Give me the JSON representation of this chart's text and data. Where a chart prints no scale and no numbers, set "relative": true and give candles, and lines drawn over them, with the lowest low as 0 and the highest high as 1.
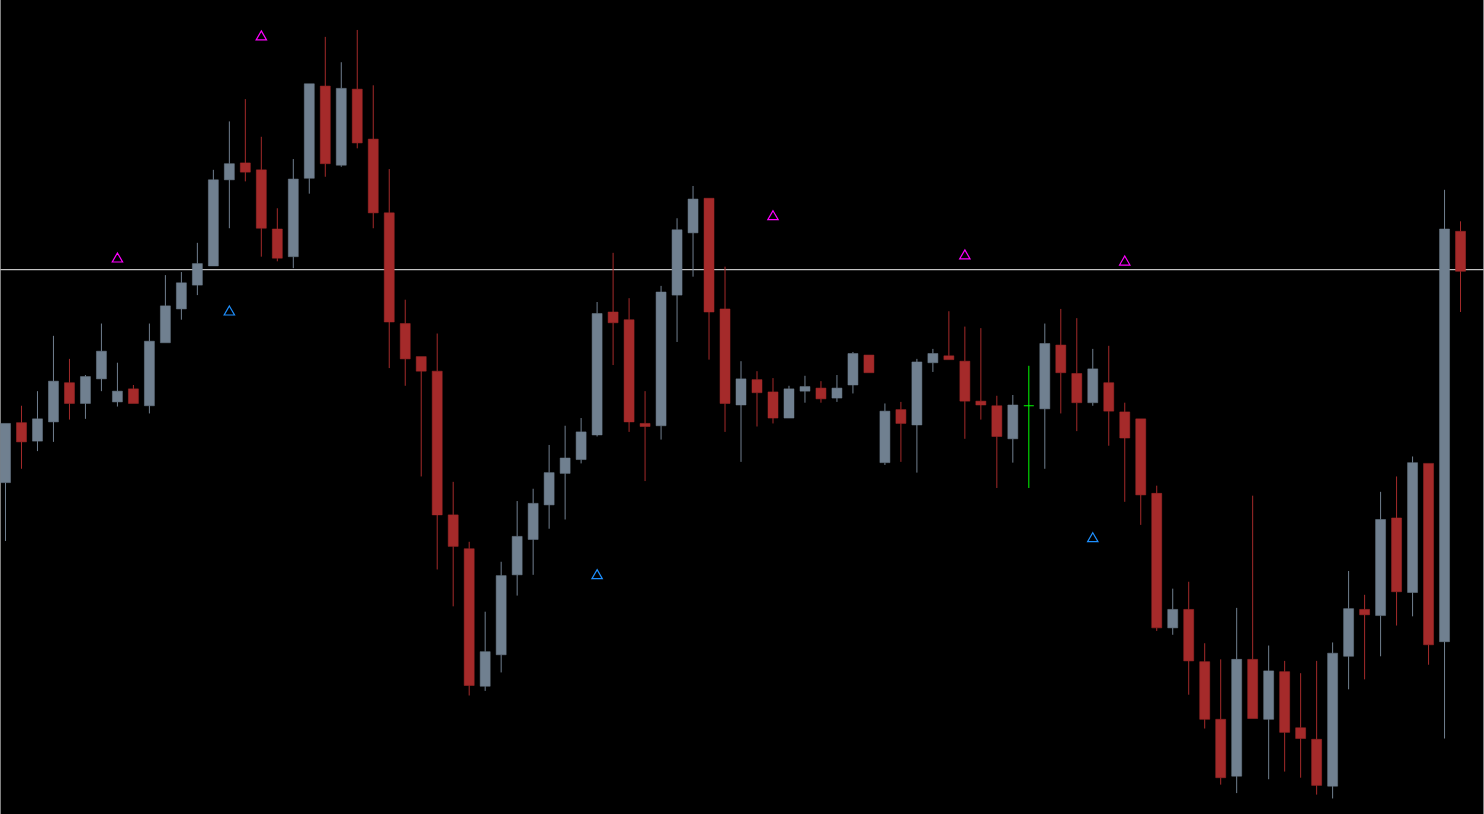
{
  "chart_data": {
    "type": "candlestick",
    "relative": true,
    "categories": [
      null,
      null,
      null,
      null,
      null,
      null,
      null,
      null,
      null,
      null,
      null,
      null,
      null,
      null,
      null,
      null,
      null,
      null,
      null,
      null,
      null,
      null,
      null,
      null,
      null,
      null,
      null,
      null,
      null,
      null,
      null,
      null,
      null,
      null,
      null,
      null,
      null,
      null,
      null,
      null,
      null,
      null,
      null,
      null,
      null,
      null,
      null,
      null,
      null,
      null,
      null,
      null,
      null,
      null,
      null,
      null,
      null,
      null,
      null,
      null,
      null,
      null,
      null,
      null,
      null,
      null,
      null,
      null,
      null,
      null,
      null,
      null,
      null,
      null,
      null,
      null,
      null,
      null,
      null,
      null,
      null,
      null,
      null,
      null,
      null,
      null,
      null,
      null,
      null,
      null,
      null,
      null
    ],
    "ohlc": [
      [
        0.411,
        0.488,
        0.335,
        0.488
      ],
      [
        0.489,
        0.511,
        0.429,
        0.464
      ],
      [
        0.465,
        0.53,
        0.452,
        0.494
      ],
      [
        0.49,
        0.602,
        0.464,
        0.543
      ],
      [
        0.541,
        0.572,
        0.493,
        0.514
      ],
      [
        0.514,
        0.551,
        0.494,
        0.549
      ],
      [
        0.546,
        0.618,
        0.53,
        0.582
      ],
      [
        0.516,
        0.567,
        0.51,
        0.53
      ],
      [
        0.533,
        0.538,
        0.514,
        0.514
      ],
      [
        0.511,
        0.618,
        0.501,
        0.595
      ],
      [
        0.593,
        0.681,
        0.593,
        0.641
      ],
      [
        0.637,
        0.685,
        0.623,
        0.671
      ],
      [
        0.668,
        0.723,
        0.655,
        0.696
      ],
      [
        0.693,
        0.818,
        0.693,
        0.805
      ],
      [
        0.805,
        0.881,
        0.742,
        0.826
      ],
      [
        0.827,
        0.91,
        0.803,
        0.815
      ],
      [
        0.818,
        0.861,
        0.705,
        0.742
      ],
      [
        0.741,
        0.768,
        0.699,
        0.703
      ],
      [
        0.705,
        0.832,
        0.69,
        0.806
      ],
      [
        0.807,
        0.93,
        0.787,
        0.93
      ],
      [
        0.927,
        0.991,
        0.809,
        0.826
      ],
      [
        0.824,
        0.958,
        0.822,
        0.924
      ],
      [
        0.923,
        1.0,
        0.846,
        0.853
      ],
      [
        0.858,
        0.928,
        0.742,
        0.762
      ],
      [
        0.762,
        0.819,
        0.56,
        0.62
      ],
      [
        0.618,
        0.649,
        0.537,
        0.572
      ],
      [
        0.575,
        0.575,
        0.419,
        0.556
      ],
      [
        0.556,
        0.605,
        0.298,
        0.369
      ],
      [
        0.369,
        0.412,
        0.25,
        0.328
      ],
      [
        0.325,
        0.334,
        0.134,
        0.147
      ],
      [
        0.146,
        0.243,
        0.14,
        0.191
      ],
      [
        0.187,
        0.308,
        0.164,
        0.29
      ],
      [
        0.291,
        0.387,
        0.264,
        0.341
      ],
      [
        0.337,
        0.403,
        0.291,
        0.384
      ],
      [
        0.382,
        0.46,
        0.351,
        0.424
      ],
      [
        0.423,
        0.485,
        0.363,
        0.443
      ],
      [
        0.441,
        0.495,
        0.436,
        0.477
      ],
      [
        0.473,
        0.646,
        0.471,
        0.631
      ],
      [
        0.633,
        0.71,
        0.564,
        0.619
      ],
      [
        0.623,
        0.651,
        0.477,
        0.49
      ],
      [
        0.488,
        0.53,
        0.413,
        0.484
      ],
      [
        0.485,
        0.667,
        0.467,
        0.659
      ],
      [
        0.655,
        0.755,
        0.594,
        0.74
      ],
      [
        0.736,
        0.797,
        0.679,
        0.78
      ],
      [
        0.781,
        0.781,
        0.571,
        0.633
      ],
      [
        0.637,
        0.692,
        0.477,
        0.514
      ],
      [
        0.512,
        0.569,
        0.438,
        0.546
      ],
      [
        0.545,
        0.556,
        0.484,
        0.528
      ],
      [
        0.529,
        0.547,
        0.488,
        0.495
      ],
      [
        0.495,
        0.537,
        0.495,
        0.533
      ],
      [
        0.53,
        0.55,
        0.515,
        0.536
      ],
      [
        0.534,
        0.543,
        0.515,
        0.52
      ],
      [
        0.521,
        0.551,
        0.516,
        0.534
      ],
      [
        0.538,
        0.581,
        0.527,
        0.579
      ],
      [
        0.577,
        0.577,
        0.554,
        0.554
      ],
      [
        0.437,
        0.514,
        0.434,
        0.504
      ],
      [
        0.506,
        0.516,
        0.438,
        0.488
      ],
      [
        0.486,
        0.572,
        0.424,
        0.568
      ],
      [
        0.567,
        0.585,
        0.555,
        0.579
      ],
      [
        0.576,
        0.634,
        0.571,
        0.571
      ],
      [
        0.569,
        0.614,
        0.468,
        0.517
      ],
      [
        0.517,
        0.612,
        0.493,
        0.512
      ],
      [
        0.511,
        0.524,
        0.404,
        0.471
      ],
      [
        0.468,
        0.525,
        0.437,
        0.512
      ],
      [
        0.511,
        0.563,
        0.404,
        0.511
      ],
      [
        0.507,
        0.618,
        0.429,
        0.592
      ],
      [
        0.59,
        0.637,
        0.501,
        0.554
      ],
      [
        0.553,
        0.625,
        0.478,
        0.515
      ],
      [
        0.515,
        0.585,
        0.511,
        0.559
      ],
      [
        0.541,
        0.589,
        0.459,
        0.504
      ],
      [
        0.503,
        0.515,
        0.386,
        0.469
      ],
      [
        0.494,
        0.494,
        0.356,
        0.395
      ],
      [
        0.397,
        0.407,
        0.218,
        0.222
      ],
      [
        0.222,
        0.273,
        0.213,
        0.246
      ],
      [
        0.246,
        0.282,
        0.135,
        0.179
      ],
      [
        0.178,
        0.202,
        0.091,
        0.103
      ],
      [
        0.103,
        0.181,
        0.018,
        0.027
      ],
      [
        0.029,
        0.248,
        0.007,
        0.181
      ],
      [
        0.181,
        0.394,
        0.104,
        0.104
      ],
      [
        0.103,
        0.199,
        0.025,
        0.166
      ],
      [
        0.165,
        0.179,
        0.035,
        0.086
      ],
      [
        0.092,
        0.163,
        0.027,
        0.078
      ],
      [
        0.077,
        0.179,
        0.005,
        0.017
      ],
      [
        0.016,
        0.203,
        0.0,
        0.189
      ],
      [
        0.185,
        0.296,
        0.142,
        0.247
      ],
      [
        0.246,
        0.265,
        0.155,
        0.239
      ],
      [
        0.238,
        0.399,
        0.185,
        0.363
      ],
      [
        0.365,
        0.419,
        0.225,
        0.269
      ],
      [
        0.268,
        0.445,
        0.237,
        0.437
      ],
      [
        0.436,
        0.436,
        0.174,
        0.2
      ],
      [
        0.204,
        0.792,
        0.078,
        0.741
      ],
      [
        0.738,
        0.751,
        0.633,
        0.686
      ]
    ],
    "colors": [
      "#708090",
      "#a52a2a",
      "#708090",
      "#708090",
      "#a52a2a",
      "#708090",
      "#708090",
      "#708090",
      "#a52a2a",
      "#708090",
      "#708090",
      "#708090",
      "#708090",
      "#708090",
      "#708090",
      "#a52a2a",
      "#a52a2a",
      "#a52a2a",
      "#708090",
      "#708090",
      "#a52a2a",
      "#708090",
      "#a52a2a",
      "#a52a2a",
      "#a52a2a",
      "#a52a2a",
      "#a52a2a",
      "#a52a2a",
      "#a52a2a",
      "#a52a2a",
      "#708090",
      "#708090",
      "#708090",
      "#708090",
      "#708090",
      "#708090",
      "#708090",
      "#708090",
      "#a52a2a",
      "#a52a2a",
      "#a52a2a",
      "#708090",
      "#708090",
      "#708090",
      "#a52a2a",
      "#a52a2a",
      "#708090",
      "#a52a2a",
      "#a52a2a",
      "#708090",
      "#708090",
      "#a52a2a",
      "#708090",
      "#708090",
      "#a52a2a",
      "#708090",
      "#a52a2a",
      "#708090",
      "#708090",
      "#a52a2a",
      "#a52a2a",
      "#a52a2a",
      "#a52a2a",
      "#708090",
      "#00ff00",
      "#708090",
      "#a52a2a",
      "#a52a2a",
      "#708090",
      "#a52a2a",
      "#a52a2a",
      "#a52a2a",
      "#a52a2a",
      "#708090",
      "#a52a2a",
      "#a52a2a",
      "#a52a2a",
      "#708090",
      "#a52a2a",
      "#708090",
      "#a52a2a",
      "#a52a2a",
      "#a52a2a",
      "#708090",
      "#708090",
      "#a52a2a",
      "#708090",
      "#a52a2a",
      "#708090",
      "#a52a2a",
      "#708090",
      "#a52a2a"
    ],
    "ref_lines": [
      {
        "axis": "y",
        "value": 0.688,
        "color": "#ffffff"
      }
    ],
    "series": [
      {
        "type": "scatter",
        "color": "#ff00ff",
        "marker": "triangle",
        "values": [
          null,
          null,
          null,
          null,
          null,
          null,
          null,
          0.702,
          null,
          null,
          null,
          null,
          null,
          null,
          null,
          null,
          0.991,
          null,
          null,
          null,
          null,
          null,
          null,
          null,
          null,
          null,
          null,
          null,
          null,
          null,
          null,
          null,
          null,
          null,
          null,
          null,
          null,
          null,
          null,
          null,
          null,
          null,
          null,
          null,
          null,
          null,
          null,
          null,
          0.757,
          null,
          null,
          null,
          null,
          null,
          null,
          null,
          null,
          null,
          null,
          null,
          0.706,
          null,
          null,
          null,
          null,
          null,
          null,
          null,
          null,
          null,
          0.698,
          null,
          null,
          null,
          null,
          null,
          null,
          null,
          null,
          null,
          null,
          null,
          null,
          null,
          null,
          null,
          null,
          null,
          null,
          null,
          null,
          null
        ]
      },
      {
        "type": "scatter",
        "color": "#1e90ff",
        "marker": "triangle",
        "values": [
          null,
          null,
          null,
          null,
          null,
          null,
          null,
          null,
          null,
          null,
          null,
          null,
          null,
          null,
          0.633,
          null,
          null,
          null,
          null,
          null,
          null,
          null,
          null,
          null,
          null,
          null,
          null,
          null,
          null,
          null,
          null,
          null,
          null,
          null,
          null,
          null,
          null,
          0.29,
          null,
          null,
          null,
          null,
          null,
          null,
          null,
          null,
          null,
          null,
          null,
          null,
          null,
          null,
          null,
          null,
          null,
          null,
          null,
          null,
          null,
          null,
          null,
          null,
          null,
          null,
          null,
          null,
          null,
          null,
          0.338,
          null,
          null,
          null,
          null,
          null,
          null,
          null,
          null,
          null,
          null,
          null,
          null,
          null,
          null,
          null,
          null,
          null,
          null,
          null,
          null,
          null,
          null,
          null
        ]
      }
    ]
  }
}
